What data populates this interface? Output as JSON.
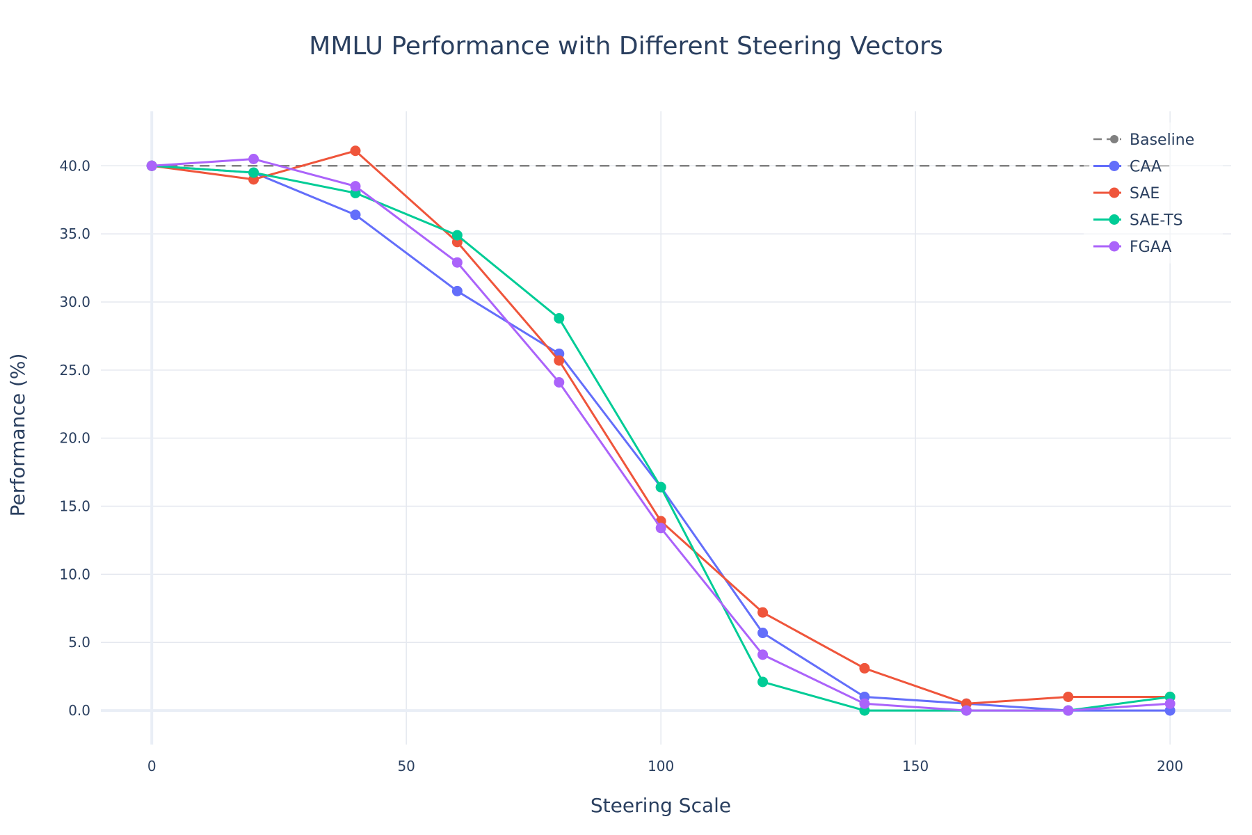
{
  "chart_data": {
    "type": "line",
    "title": "MMLU Performance with Different Steering Vectors",
    "xlabel": "Steering Scale",
    "ylabel": "Performance (%)",
    "xlim": [
      -10,
      212
    ],
    "ylim": [
      -2.5,
      44
    ],
    "x_ticks": [
      0,
      50,
      100,
      150,
      200
    ],
    "y_ticks": [
      0,
      5,
      10,
      15,
      20,
      25,
      30,
      35,
      40
    ],
    "y_tick_format": "fixed1",
    "grid": true,
    "legend_position": "top-right",
    "x": [
      0,
      20,
      40,
      60,
      80,
      100,
      120,
      140,
      160,
      180,
      200
    ],
    "series": [
      {
        "name": "Baseline",
        "color": "#808080",
        "dash": true,
        "x": [
          0,
          200
        ],
        "values": [
          40,
          40
        ]
      },
      {
        "name": "CAA",
        "color": "#636efa",
        "values": [
          40.0,
          39.5,
          36.4,
          30.8,
          26.2,
          16.4,
          5.7,
          1.0,
          0.5,
          0.0,
          0.0
        ]
      },
      {
        "name": "SAE",
        "color": "#ef553b",
        "values": [
          40.0,
          39.0,
          41.1,
          34.4,
          25.7,
          13.9,
          7.2,
          3.1,
          0.5,
          1.0,
          1.0
        ]
      },
      {
        "name": "SAE-TS",
        "color": "#00cc96",
        "values": [
          40.0,
          39.5,
          38.0,
          34.9,
          28.8,
          16.4,
          2.1,
          0.0,
          0.0,
          0.0,
          1.0
        ]
      },
      {
        "name": "FGAA",
        "color": "#ab63fa",
        "values": [
          40.0,
          40.5,
          38.5,
          32.9,
          24.1,
          13.4,
          4.1,
          0.5,
          0.0,
          0.0,
          0.5
        ]
      }
    ]
  }
}
